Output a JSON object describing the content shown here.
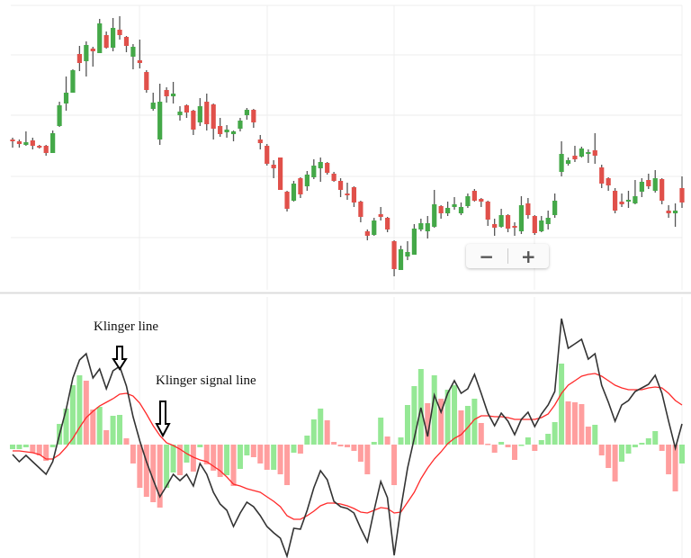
{
  "chart_data": [
    {
      "type": "candlestick",
      "title": "",
      "xlabel": "",
      "ylabel": "",
      "grid": true,
      "colors": {
        "up": "#44a848",
        "down": "#e0504a",
        "wick": "#555555"
      },
      "ohlc": [
        [
          175,
          177,
          166,
          173
        ],
        [
          173,
          175,
          166,
          170
        ],
        [
          169,
          184,
          168,
          172
        ],
        [
          174,
          177,
          164,
          168
        ],
        [
          168,
          169,
          165,
          166
        ],
        [
          168,
          169,
          157,
          160
        ],
        [
          160,
          185,
          160,
          182
        ],
        [
          190,
          217,
          189,
          213
        ],
        [
          215,
          245,
          207,
          227
        ],
        [
          227,
          253,
          227,
          252
        ],
        [
          270,
          279,
          251,
          260
        ],
        [
          262,
          284,
          245,
          280
        ],
        [
          276,
          278,
          256,
          273
        ],
        [
          271,
          309,
          271,
          304
        ],
        [
          291,
          295,
          276,
          277
        ],
        [
          277,
          310,
          273,
          299
        ],
        [
          297,
          312,
          286,
          291
        ],
        [
          289,
          290,
          272,
          279
        ],
        [
          267,
          281,
          253,
          278
        ],
        [
          263,
          286,
          254,
          260
        ],
        [
          250,
          252,
          227,
          230
        ],
        [
          209,
          227,
          207,
          216
        ],
        [
          175,
          237,
          169,
          217
        ],
        [
          230,
          233,
          216,
          223
        ],
        [
          223,
          239,
          215,
          226
        ],
        [
          202,
          212,
          196,
          206
        ],
        [
          213,
          214,
          199,
          205
        ],
        [
          207,
          208,
          180,
          186
        ],
        [
          194,
          221,
          190,
          212
        ],
        [
          217,
          226,
          185,
          192
        ],
        [
          214,
          215,
          175,
          187
        ],
        [
          190,
          199,
          178,
          181
        ],
        [
          183,
          191,
          177,
          186
        ],
        [
          181,
          185,
          173,
          184
        ],
        [
          187,
          199,
          184,
          196
        ],
        [
          202,
          210,
          197,
          208
        ],
        [
          208,
          209,
          188,
          194
        ],
        [
          175,
          180,
          164,
          171
        ],
        [
          168,
          170,
          146,
          148
        ],
        [
          147,
          152,
          132,
          143
        ],
        [
          155,
          155,
          119,
          119
        ],
        [
          117,
          118,
          95,
          98
        ],
        [
          107,
          129,
          106,
          126
        ],
        [
          132,
          133,
          110,
          114
        ],
        [
          123,
          140,
          118,
          136
        ],
        [
          133,
          153,
          131,
          146
        ],
        [
          143,
          155,
          128,
          150
        ],
        [
          149,
          150,
          136,
          138
        ],
        [
          137,
          139,
          128,
          129
        ],
        [
          129,
          132,
          111,
          119
        ],
        [
          115,
          127,
          108,
          113
        ],
        [
          122,
          123,
          100,
          105
        ],
        [
          106,
          107,
          83,
          89
        ],
        [
          73,
          75,
          63,
          68
        ],
        [
          69,
          88,
          68,
          85
        ],
        [
          92,
          100,
          85,
          89
        ],
        [
          88,
          89,
          72,
          75
        ],
        [
          62,
          63,
          23,
          31
        ],
        [
          30,
          57,
          30,
          53
        ],
        [
          45,
          62,
          41,
          50
        ],
        [
          47,
          81,
          47,
          76
        ],
        [
          75,
          87,
          73,
          82
        ],
        [
          73,
          90,
          65,
          82
        ],
        [
          78,
          119,
          77,
          103
        ],
        [
          101,
          102,
          87,
          93
        ],
        [
          93,
          106,
          90,
          99
        ],
        [
          100,
          111,
          97,
          103
        ],
        [
          93,
          105,
          91,
          100
        ],
        [
          101,
          115,
          99,
          112
        ],
        [
          118,
          120,
          106,
          107
        ],
        [
          109,
          110,
          100,
          106
        ],
        [
          106,
          107,
          79,
          86
        ],
        [
          81,
          87,
          68,
          77
        ],
        [
          78,
          98,
          77,
          91
        ],
        [
          91,
          92,
          72,
          76
        ],
        [
          79,
          83,
          68,
          77
        ],
        [
          73,
          112,
          70,
          102
        ],
        [
          104,
          110,
          87,
          91
        ],
        [
          90,
          91,
          69,
          71
        ],
        [
          73,
          90,
          72,
          85
        ],
        [
          81,
          96,
          75,
          88
        ],
        [
          91,
          115,
          88,
          107
        ],
        [
          139,
          173,
          134,
          159
        ],
        [
          148,
          155,
          146,
          152
        ],
        [
          157,
          168,
          150,
          153
        ],
        [
          156,
          167,
          155,
          165
        ],
        [
          159,
          164,
          149,
          161
        ],
        [
          163,
          182,
          148,
          157
        ],
        [
          144,
          147,
          121,
          126
        ],
        [
          132,
          133,
          118,
          124
        ],
        [
          118,
          121,
          93,
          96
        ],
        [
          106,
          115,
          100,
          103
        ],
        [
          106,
          118,
          99,
          108
        ],
        [
          104,
          130,
          103,
          112
        ],
        [
          117,
          132,
          111,
          128
        ],
        [
          130,
          137,
          120,
          123
        ],
        [
          118,
          141,
          116,
          132
        ],
        [
          131,
          132,
          103,
          107
        ],
        [
          96,
          102,
          88,
          93
        ],
        [
          93,
          104,
          78,
          96
        ],
        [
          121,
          134,
          99,
          105
        ]
      ]
    },
    {
      "type": "line",
      "title": "",
      "grid": true,
      "colors": {
        "klinger": "#333333",
        "signal": "#ff2a2a",
        "hist_up": "#95e895",
        "hist_down": "#ff9e9e"
      },
      "annotations": [
        {
          "text": "Klinger line",
          "target": "klinger"
        },
        {
          "text": "Klinger signal line",
          "target": "signal"
        }
      ],
      "series": [
        {
          "key": "klinger",
          "values": [
            -11,
            -19,
            -12,
            -19,
            -26,
            -33,
            -19,
            11,
            39,
            74,
            94,
            101,
            74,
            84,
            62,
            82,
            87,
            65,
            31,
            4,
            -19,
            -39,
            -58,
            -46,
            -33,
            -40,
            -33,
            -46,
            -21,
            -33,
            -53,
            -66,
            -73,
            -91,
            -76,
            -64,
            -69,
            -79,
            -91,
            -98,
            -104,
            -124,
            -93,
            -94,
            -73,
            -48,
            -29,
            -39,
            -63,
            -69,
            -71,
            -76,
            -93,
            -108,
            -73,
            -41,
            -59,
            -123,
            -71,
            -26,
            7,
            41,
            9,
            55,
            36,
            57,
            71,
            57,
            62,
            78,
            57,
            35,
            21,
            35,
            26,
            11,
            28,
            36,
            20,
            34,
            44,
            59,
            140,
            107,
            112,
            117,
            95,
            101,
            66,
            47,
            26,
            44,
            49,
            59,
            63,
            67,
            77,
            57,
            26,
            -4,
            23
          ]
        },
        {
          "key": "signal",
          "values": [
            -7,
            -7,
            -8,
            -9,
            -11,
            -16,
            -16,
            -11,
            -3,
            7,
            19,
            30,
            37,
            43,
            47,
            51,
            56,
            57,
            54,
            46,
            34,
            21,
            10,
            2,
            -1,
            -5,
            -10,
            -14,
            -17,
            -19,
            -24,
            -29,
            -36,
            -44,
            -46,
            -49,
            -51,
            -53,
            -58,
            -63,
            -69,
            -79,
            -83,
            -83,
            -79,
            -74,
            -68,
            -65,
            -65,
            -66,
            -68,
            -71,
            -75,
            -76,
            -73,
            -70,
            -71,
            -76,
            -75,
            -64,
            -53,
            -38,
            -26,
            -16,
            -8,
            1,
            7,
            11,
            19,
            28,
            32,
            32,
            31,
            31,
            30,
            28,
            28,
            28,
            28,
            30,
            34,
            44,
            57,
            66,
            71,
            76,
            78,
            79,
            76,
            71,
            66,
            63,
            61,
            61,
            61,
            63,
            64,
            63,
            57,
            49,
            44
          ]
        },
        {
          "key": "histogram",
          "values": [
            -5,
            -5,
            -3,
            -9,
            -12,
            -18,
            -3,
            23,
            40,
            66,
            77,
            71,
            39,
            42,
            16,
            32,
            33,
            7,
            -21,
            -48,
            -58,
            -64,
            -70,
            -48,
            -31,
            -34,
            -20,
            -30,
            -3,
            -22,
            -29,
            -36,
            -34,
            -46,
            -27,
            -12,
            -14,
            -21,
            -28,
            -28,
            -33,
            -45,
            -9,
            -10,
            10,
            28,
            40,
            27,
            3,
            -2,
            -3,
            -7,
            -19,
            -33,
            3,
            30,
            9,
            -45,
            8,
            44,
            65,
            84,
            46,
            77,
            51,
            61,
            66,
            38,
            43,
            51,
            24,
            1,
            -9,
            3,
            -3,
            -17,
            0,
            8,
            -7,
            5,
            12,
            25,
            90,
            48,
            47,
            45,
            20,
            22,
            -12,
            -26,
            -41,
            -19,
            -10,
            -3,
            2,
            7,
            15,
            -7,
            -33,
            -52,
            -21
          ]
        }
      ]
    }
  ],
  "zoom_controls": {
    "zoom_out_icon": "minus-icon",
    "zoom_in_icon": "plus-icon",
    "zoom_out": "−",
    "zoom_in": "+"
  }
}
